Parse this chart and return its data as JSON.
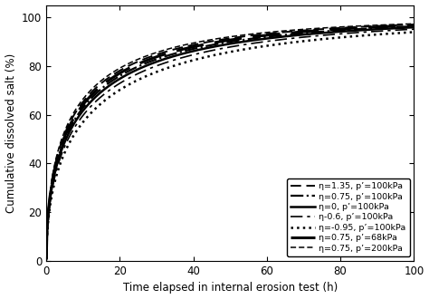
{
  "title": "",
  "xlabel": "Time elapsed in internal erosion test (h)",
  "ylabel": "Cumulative dissolved salt (%)",
  "xlim": [
    0,
    100
  ],
  "ylim": [
    0,
    105
  ],
  "xticks": [
    0,
    20,
    40,
    60,
    80,
    100
  ],
  "yticks": [
    0,
    20,
    40,
    60,
    80,
    100
  ],
  "legend_entries": [
    {
      "label": "η=1.35, p’=100kPa",
      "linestyle": "--",
      "linewidth": 1.4,
      "dashes": [
        6,
        3
      ]
    },
    {
      "label": "η=0.75, p’=100kPa",
      "linestyle": "-.",
      "linewidth": 1.6,
      "dashes": null
    },
    {
      "label": "η=0, p’=100kPa",
      "linestyle": "-",
      "linewidth": 1.8,
      "dashes": null
    },
    {
      "label": "η-0.6, p’=100kPa",
      "linestyle": "--",
      "linewidth": 1.2,
      "dashes": [
        8,
        3,
        2,
        3
      ]
    },
    {
      "label": "η=-0.95, p’=100kPa",
      "linestyle": ":",
      "linewidth": 1.8,
      "dashes": null
    },
    {
      "label": "η=0.75, p’=68kPa",
      "linestyle": "--",
      "linewidth": 2.2,
      "dashes": [
        10,
        4
      ]
    },
    {
      "label": "η=0.75, p’=200kPa",
      "linestyle": "--",
      "linewidth": 1.1,
      "dashes": [
        4,
        2
      ]
    }
  ],
  "curves": [
    {
      "k": 0.32,
      "n": 0.52,
      "ls": "--",
      "lw": 1.4,
      "dashes": [
        6,
        3
      ]
    },
    {
      "k": 0.3,
      "n": 0.52,
      "ls": "-.",
      "lw": 1.6,
      "dashes": null
    },
    {
      "k": 0.29,
      "n": 0.52,
      "ls": "-",
      "lw": 1.8,
      "dashes": null
    },
    {
      "k": 0.275,
      "n": 0.52,
      "ls": "--",
      "lw": 1.2,
      "dashes": [
        8,
        3,
        2,
        3
      ]
    },
    {
      "k": 0.255,
      "n": 0.52,
      "ls": ":",
      "lw": 1.8,
      "dashes": null
    },
    {
      "k": 0.31,
      "n": 0.52,
      "ls": "--",
      "lw": 2.2,
      "dashes": [
        10,
        4
      ]
    },
    {
      "k": 0.33,
      "n": 0.52,
      "ls": "--",
      "lw": 1.1,
      "dashes": [
        4,
        2
      ]
    }
  ],
  "background_color": "#ffffff",
  "curve_color": "#000000"
}
